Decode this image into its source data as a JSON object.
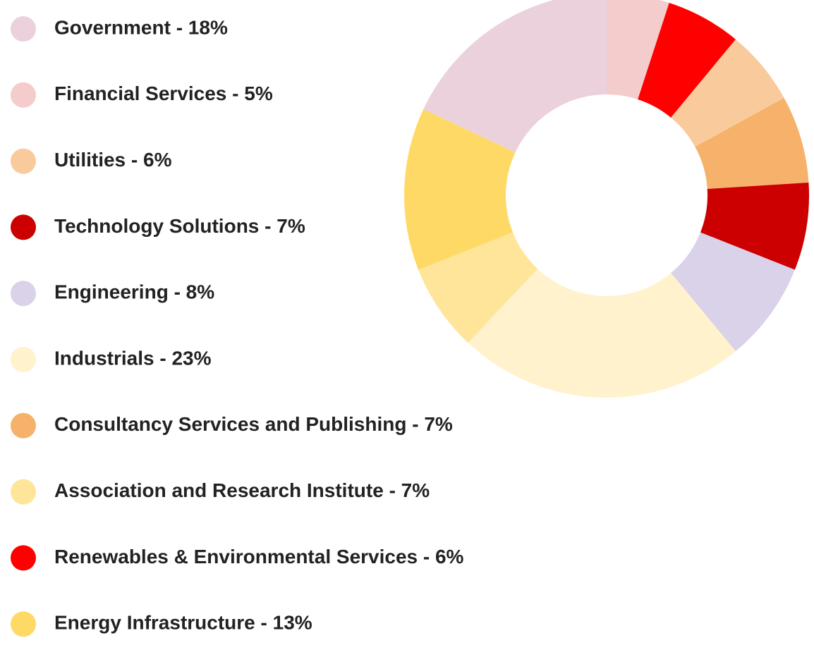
{
  "chart_data": {
    "type": "donut",
    "categories": [
      "Financial Services - 5%",
      "Renewables & Environmental Services - 6%",
      "Utilities - 6%",
      "Consultancy Services and Publishing - 7%",
      "Technology Solutions - 7%",
      "Engineering - 8%",
      "Industrials - 23%",
      "Association and Research Institute - 7%",
      "Energy Infrastructure - 13%",
      "Government - 18%"
    ],
    "values": [
      5,
      6,
      6,
      7,
      7,
      8,
      23,
      7,
      13,
      18
    ],
    "colors": [
      "#f4cccc",
      "#ff0000",
      "#f9cb9c",
      "#f6b26b",
      "#cc0000",
      "#d9d2e9",
      "#fff2cc",
      "#ffe599",
      "#ffd966",
      "#ead1dc"
    ]
  }
}
